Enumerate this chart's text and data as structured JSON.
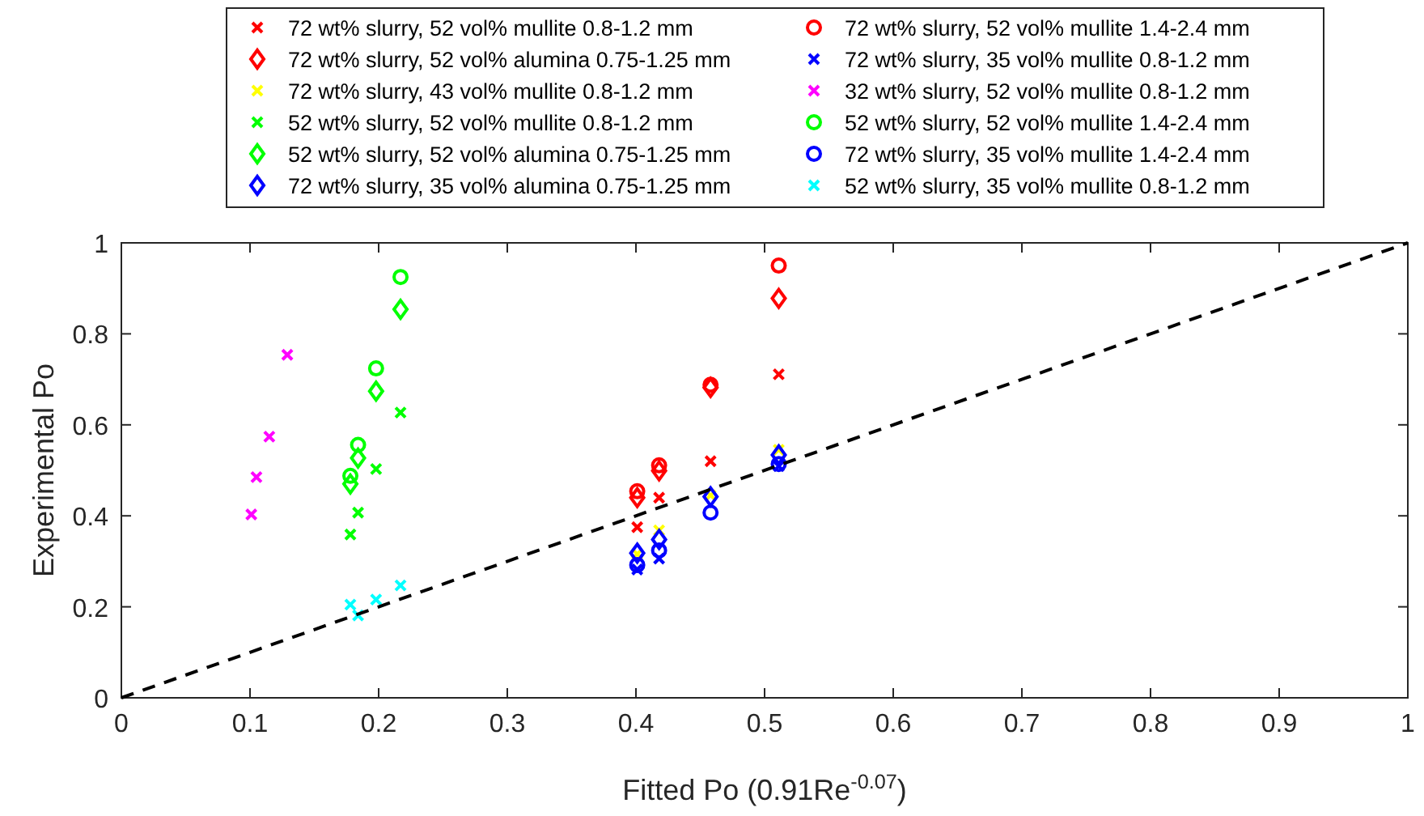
{
  "chart_data": {
    "type": "scatter",
    "xlabel": "Fitted Po (0.91Re$^{-0.07}$)",
    "ylabel": "Experimental Po",
    "xlim": [
      0,
      1
    ],
    "ylim": [
      0,
      1
    ],
    "xticks": [
      0,
      0.1,
      0.2,
      0.3,
      0.4,
      0.5,
      0.6,
      0.7,
      0.8,
      0.9,
      1
    ],
    "yticks": [
      0,
      0.2,
      0.4,
      0.6,
      0.8,
      1
    ],
    "grid": false,
    "legend": "top",
    "series": [
      {
        "name": "72 wt% slurry, 52 vol% mullite 0.8-1.2 mm",
        "color": "#ff0000",
        "marker": "cross",
        "x": [
          0.401,
          0.418,
          0.458,
          0.511
        ],
        "values": [
          0.375,
          0.44,
          0.52,
          0.711
        ]
      },
      {
        "name": "72 wt% slurry, 52 vol% alumina 0.75-1.25 mm",
        "color": "#ff0000",
        "marker": "diamond",
        "x": [
          0.401,
          0.418,
          0.458,
          0.511
        ],
        "values": [
          0.44,
          0.499,
          0.682,
          0.878
        ]
      },
      {
        "name": "72 wt% slurry, 43 vol% mullite 0.8-1.2 mm",
        "color": "#ffff00",
        "marker": "cross",
        "x": [
          0.401,
          0.418,
          0.458,
          0.511
        ],
        "values": [
          0.316,
          0.368,
          0.445,
          0.545
        ]
      },
      {
        "name": "52 wt% slurry, 52 vol% mullite 0.8-1.2 mm",
        "color": "#00ff00",
        "marker": "cross",
        "x": [
          0.178,
          0.184,
          0.198,
          0.217
        ],
        "values": [
          0.359,
          0.407,
          0.503,
          0.627
        ]
      },
      {
        "name": "52 wt% slurry, 52 vol% alumina 0.75-1.25 mm",
        "color": "#00ff00",
        "marker": "diamond",
        "x": [
          0.178,
          0.184,
          0.198,
          0.217
        ],
        "values": [
          0.47,
          0.527,
          0.674,
          0.854
        ]
      },
      {
        "name": "72 wt% slurry, 35 vol% alumina 0.75-1.25 mm",
        "color": "#0000ff",
        "marker": "diamond",
        "x": [
          0.401,
          0.418,
          0.458,
          0.511
        ],
        "values": [
          0.318,
          0.348,
          0.442,
          0.534
        ]
      },
      {
        "name": "72 wt% slurry, 52 vol% mullite 1.4-2.4 mm",
        "color": "#ff0000",
        "marker": "circle",
        "x": [
          0.401,
          0.418,
          0.458,
          0.511
        ],
        "values": [
          0.454,
          0.511,
          0.688,
          0.95
        ]
      },
      {
        "name": "72 wt% slurry, 35 vol% mullite 0.8-1.2 mm",
        "color": "#0000ff",
        "marker": "cross",
        "x": [
          0.401,
          0.418,
          0.511
        ],
        "values": [
          0.282,
          0.306,
          0.509
        ]
      },
      {
        "name": "32 wt% slurry, 52 vol% mullite 0.8-1.2 mm",
        "color": "#ff00ff",
        "marker": "cross",
        "x": [
          0.101,
          0.105,
          0.115,
          0.129
        ],
        "values": [
          0.403,
          0.485,
          0.574,
          0.754
        ]
      },
      {
        "name": "52 wt% slurry, 52 vol% mullite 1.4-2.4 mm",
        "color": "#00ff00",
        "marker": "circle",
        "x": [
          0.178,
          0.184,
          0.198,
          0.217
        ],
        "values": [
          0.488,
          0.556,
          0.724,
          0.925
        ]
      },
      {
        "name": "72 wt% slurry, 35 vol% mullite 1.4-2.4 mm",
        "color": "#0000ff",
        "marker": "circle",
        "x": [
          0.401,
          0.418,
          0.458,
          0.511
        ],
        "values": [
          0.292,
          0.324,
          0.407,
          0.514
        ]
      },
      {
        "name": "52 wt% slurry, 35 vol% mullite 0.8-1.2 mm",
        "color": "#00ffff",
        "marker": "cross",
        "x": [
          0.178,
          0.184,
          0.198,
          0.217
        ],
        "values": [
          0.205,
          0.181,
          0.216,
          0.247
        ]
      },
      {
        "type": "line",
        "color": "#000000",
        "line_style": "dashed",
        "marker": "none",
        "x": [
          0,
          1
        ],
        "values": [
          0,
          1
        ]
      }
    ]
  }
}
